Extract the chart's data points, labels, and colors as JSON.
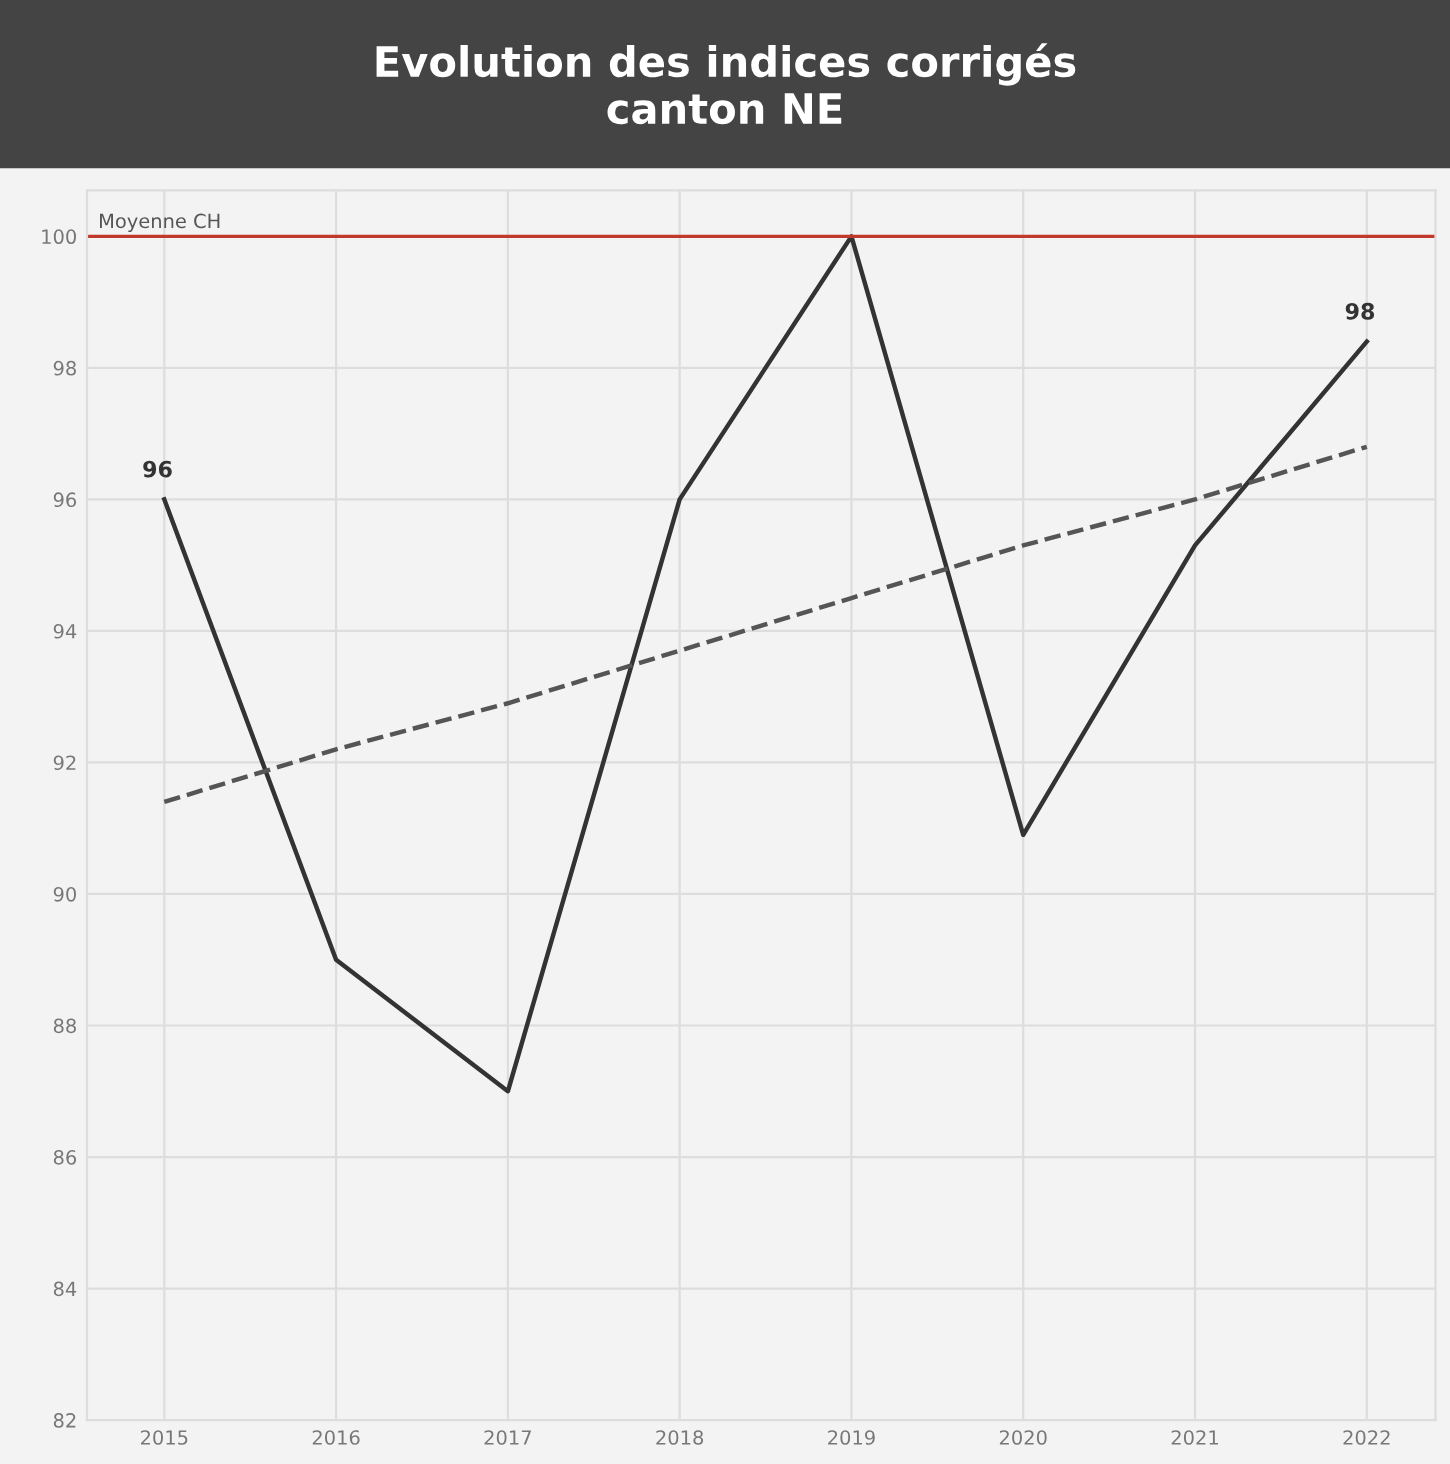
{
  "chart_data": {
    "type": "line",
    "title": "Evolution des indices corrigés\ncanton NE",
    "categories": [
      "2015",
      "2016",
      "2017",
      "2018",
      "2019",
      "2020",
      "2021",
      "2022"
    ],
    "series": [
      {
        "color": "#333333",
        "values": [
          96,
          89,
          87,
          96,
          100,
          90.9,
          95.3,
          98.4
        ],
        "value_labels": [
          "96",
          null,
          null,
          null,
          null,
          null,
          null,
          "98"
        ],
        "line_style": "solid"
      },
      {
        "type": "line",
        "color": "#555555",
        "values": [
          91.4,
          92.2,
          92.9,
          93.7,
          94.5,
          95.3,
          96.0,
          96.8
        ],
        "line_style": "dashed"
      }
    ],
    "ylim": [
      82,
      100.7
    ],
    "yticks": [
      82,
      84,
      86,
      88,
      90,
      92,
      94,
      96,
      98,
      100
    ],
    "ref_lines": [
      {
        "axis": "y",
        "value": 100,
        "label": "Moyenne CH",
        "color": "#c0392b"
      }
    ],
    "grid": true,
    "legend": false,
    "marker": "none"
  }
}
